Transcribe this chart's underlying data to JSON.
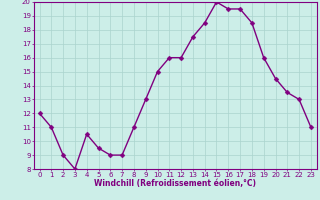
{
  "x": [
    0,
    1,
    2,
    3,
    4,
    5,
    6,
    7,
    8,
    9,
    10,
    11,
    12,
    13,
    14,
    15,
    16,
    17,
    18,
    19,
    20,
    21,
    22,
    23
  ],
  "y": [
    12,
    11,
    9,
    8,
    10.5,
    9.5,
    9,
    9,
    11,
    13,
    15,
    16,
    16,
    17.5,
    18.5,
    20,
    19.5,
    19.5,
    18.5,
    16,
    14.5,
    13.5,
    13,
    11
  ],
  "line_color": "#800080",
  "marker_color": "#800080",
  "bg_color": "#cceee8",
  "grid_color": "#aad4ce",
  "axis_color": "#800080",
  "xlabel": "Windchill (Refroidissement éolien,°C)",
  "ylim": [
    8,
    20
  ],
  "xlim": [
    -0.5,
    23.5
  ],
  "yticks": [
    8,
    9,
    10,
    11,
    12,
    13,
    14,
    15,
    16,
    17,
    18,
    19,
    20
  ],
  "xticks": [
    0,
    1,
    2,
    3,
    4,
    5,
    6,
    7,
    8,
    9,
    10,
    11,
    12,
    13,
    14,
    15,
    16,
    17,
    18,
    19,
    20,
    21,
    22,
    23
  ],
  "line_width": 1.0,
  "marker_size": 2.5,
  "tick_fontsize": 5.0,
  "xlabel_fontsize": 5.5
}
